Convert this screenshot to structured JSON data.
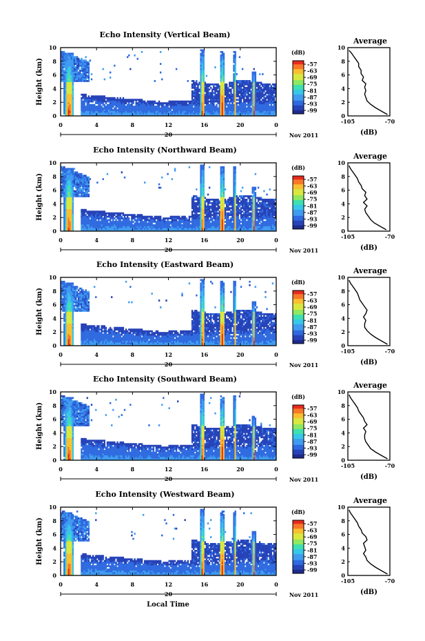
{
  "figure": {
    "xlabel": "Local Time",
    "colors": {
      "jet": [
        "#1e2a8c",
        "#2743b8",
        "#2f6ae0",
        "#3f9cf0",
        "#36c8e8",
        "#3ee0b0",
        "#8fe860",
        "#d8e840",
        "#f8c030",
        "#f87828",
        "#e82a1e"
      ]
    }
  },
  "chart_data": [
    {
      "type": "heatmap",
      "title": "Echo Intensity (Vertical Beam)",
      "ylabel": "Height (km)",
      "ylim": [
        0,
        10
      ],
      "yticks": [
        "0",
        "2",
        "4",
        "6",
        "8",
        "10"
      ],
      "xlim": [
        0,
        24
      ],
      "xticks": [
        "0",
        "4",
        "8",
        "12",
        "16",
        "20",
        "0"
      ],
      "date_label": "20",
      "month_label": "Nov 2011",
      "colorbar": {
        "label": "(dB)",
        "ticks": [
          "-57",
          "-63",
          "-69",
          "-75",
          "-81",
          "-87",
          "-93",
          "-99"
        ]
      },
      "average": {
        "title": "Average",
        "xlabel": "(dB)",
        "xticks": [
          "-105",
          "-70"
        ],
        "xlim": [
          -105,
          -70
        ],
        "yticks": [
          "0",
          "2",
          "4",
          "6",
          "8",
          "10"
        ],
        "heights": [
          0.2,
          0.7,
          1.2,
          1.7,
          2.2,
          2.7,
          3.2,
          3.7,
          4.2,
          4.7,
          5.2,
          5.7,
          6.2,
          6.7,
          7.2,
          7.7,
          8.2,
          8.7,
          9.2,
          9.6
        ],
        "values": [
          -72,
          -77,
          -82,
          -86,
          -89,
          -90,
          -91,
          -90,
          -91,
          -90,
          -93,
          -92,
          -94,
          -94,
          -96,
          -96,
          -98,
          -100,
          -102,
          -104
        ]
      }
    },
    {
      "type": "heatmap",
      "title": "Echo Intensity (Northward Beam)",
      "ylabel": "Height (km)",
      "ylim": [
        0,
        10
      ],
      "yticks": [
        "0",
        "2",
        "4",
        "6",
        "8",
        "10"
      ],
      "xlim": [
        0,
        24
      ],
      "xticks": [
        "0",
        "4",
        "8",
        "12",
        "16",
        "20",
        "0"
      ],
      "date_label": "20",
      "month_label": "Nov 2011",
      "colorbar": {
        "label": "(dB)",
        "ticks": [
          "-57",
          "-63",
          "-69",
          "-75",
          "-81",
          "-87",
          "-93",
          "-99"
        ]
      },
      "average": {
        "title": "Average",
        "xlabel": "(dB)",
        "xticks": [
          "-105",
          "-70"
        ],
        "xlim": [
          -105,
          -70
        ],
        "yticks": [
          "0",
          "2",
          "4",
          "6",
          "8",
          "10"
        ],
        "heights": [
          0.2,
          0.7,
          1.2,
          1.7,
          2.2,
          2.7,
          3.2,
          3.7,
          4.2,
          4.7,
          5.2,
          5.7,
          6.2,
          6.7,
          7.2,
          7.7,
          8.2,
          8.7,
          9.2,
          9.6
        ],
        "values": [
          -73,
          -78,
          -83,
          -86,
          -88,
          -90,
          -91,
          -89,
          -92,
          -89,
          -91,
          -90,
          -93,
          -94,
          -96,
          -97,
          -99,
          -101,
          -103,
          -104
        ]
      }
    },
    {
      "type": "heatmap",
      "title": "Echo Intensity (Eastward Beam)",
      "ylabel": "Height (km)",
      "ylim": [
        0,
        10
      ],
      "yticks": [
        "0",
        "2",
        "4",
        "6",
        "8",
        "10"
      ],
      "xlim": [
        0,
        24
      ],
      "xticks": [
        "0",
        "4",
        "8",
        "12",
        "16",
        "20",
        "0"
      ],
      "date_label": "20",
      "month_label": "Nov 2011",
      "colorbar": {
        "label": "(dB)",
        "ticks": [
          "-57",
          "-63",
          "-69",
          "-75",
          "-81",
          "-87",
          "-93",
          "-99"
        ]
      },
      "average": {
        "title": "Average",
        "xlabel": "(dB)",
        "xticks": [
          "-105",
          "-70"
        ],
        "xlim": [
          -105,
          -70
        ],
        "yticks": [
          "0",
          "2",
          "4",
          "6",
          "8",
          "10"
        ],
        "heights": [
          0.2,
          0.7,
          1.2,
          1.7,
          2.2,
          2.7,
          3.2,
          3.7,
          4.2,
          4.7,
          5.2,
          5.7,
          6.2,
          6.7,
          7.2,
          7.7,
          8.2,
          8.7,
          9.2,
          9.6
        ],
        "values": [
          -72,
          -77,
          -82,
          -86,
          -89,
          -91,
          -91,
          -90,
          -92,
          -90,
          -89,
          -91,
          -93,
          -95,
          -96,
          -97,
          -99,
          -101,
          -103,
          -104
        ]
      }
    },
    {
      "type": "heatmap",
      "title": "Echo Intensity (Southward Beam)",
      "ylabel": "Height (km)",
      "ylim": [
        0,
        10
      ],
      "yticks": [
        "0",
        "2",
        "4",
        "6",
        "8",
        "10"
      ],
      "xlim": [
        0,
        24
      ],
      "xticks": [
        "0",
        "4",
        "8",
        "12",
        "16",
        "20",
        "0"
      ],
      "date_label": "20",
      "month_label": "Nov 2011",
      "colorbar": {
        "label": "(dB)",
        "ticks": [
          "-57",
          "-63",
          "-69",
          "-75",
          "-81",
          "-87",
          "-93",
          "-99"
        ]
      },
      "average": {
        "title": "Average",
        "xlabel": "(dB)",
        "xticks": [
          "-105",
          "-70"
        ],
        "xlim": [
          -105,
          -70
        ],
        "yticks": [
          "0",
          "2",
          "4",
          "6",
          "8",
          "10"
        ],
        "heights": [
          0.2,
          0.7,
          1.2,
          1.7,
          2.2,
          2.7,
          3.2,
          3.7,
          4.2,
          4.7,
          5.2,
          5.7,
          6.2,
          6.7,
          7.2,
          7.7,
          8.2,
          8.7,
          9.2,
          9.6
        ],
        "values": [
          -72,
          -77,
          -82,
          -86,
          -88,
          -90,
          -91,
          -91,
          -90,
          -92,
          -89,
          -91,
          -92,
          -94,
          -96,
          -97,
          -99,
          -101,
          -103,
          -104
        ]
      }
    },
    {
      "type": "heatmap",
      "title": "Echo Intensity (Westward Beam)",
      "ylabel": "Height (km)",
      "ylim": [
        0,
        10
      ],
      "yticks": [
        "0",
        "2",
        "4",
        "6",
        "8",
        "10"
      ],
      "xlim": [
        0,
        24
      ],
      "xticks": [
        "0",
        "4",
        "8",
        "12",
        "16",
        "20",
        "0"
      ],
      "date_label": "20",
      "month_label": "Nov 2011",
      "colorbar": {
        "label": "(dB)",
        "ticks": [
          "-57",
          "-63",
          "-69",
          "-75",
          "-81",
          "-87",
          "-93",
          "-99"
        ]
      },
      "average": {
        "title": "Average",
        "xlabel": "(dB)",
        "xticks": [
          "-105",
          "-70"
        ],
        "xlim": [
          -105,
          -70
        ],
        "yticks": [
          "0",
          "2",
          "4",
          "6",
          "8",
          "10"
        ],
        "heights": [
          0.2,
          0.7,
          1.2,
          1.7,
          2.2,
          2.7,
          3.2,
          3.7,
          4.2,
          4.7,
          5.2,
          5.7,
          6.2,
          6.7,
          7.2,
          7.7,
          8.2,
          8.7,
          9.2,
          9.6
        ],
        "values": [
          -72,
          -77,
          -82,
          -86,
          -89,
          -90,
          -92,
          -90,
          -91,
          -92,
          -89,
          -90,
          -93,
          -94,
          -96,
          -97,
          -99,
          -101,
          -103,
          -104
        ]
      }
    }
  ]
}
